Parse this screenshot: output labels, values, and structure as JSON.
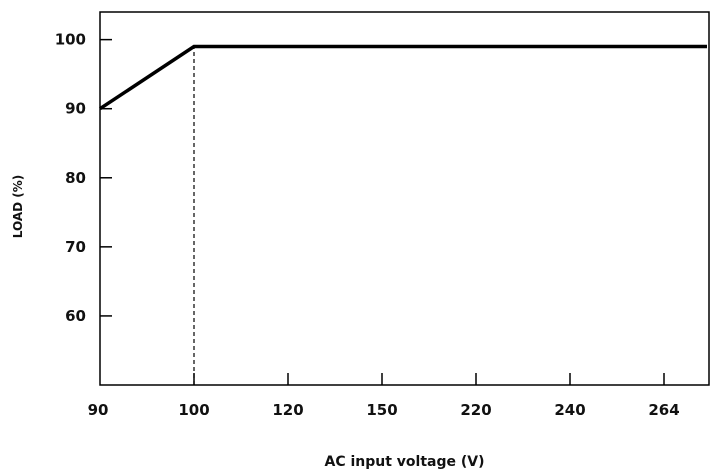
{
  "chart_data": {
    "type": "line",
    "title": "",
    "xlabel": "AC input voltage (V)",
    "ylabel": "LOAD (%)",
    "x_categories": [
      "90",
      "100",
      "120",
      "150",
      "220",
      "240",
      "264"
    ],
    "y_ticks": [
      60,
      70,
      80,
      90,
      100
    ],
    "ylim": [
      50,
      104
    ],
    "grid": false,
    "legend": "none",
    "series": [
      {
        "name": "",
        "points": [
          {
            "x": "90",
            "y": 90
          },
          {
            "x": "100",
            "y": 99
          },
          {
            "x": "264",
            "y": 99
          }
        ]
      }
    ],
    "reference_lines": [
      {
        "x": "100",
        "y_from": 50,
        "y_to": 99,
        "style": "dashed"
      }
    ],
    "line_color": "#000000"
  }
}
